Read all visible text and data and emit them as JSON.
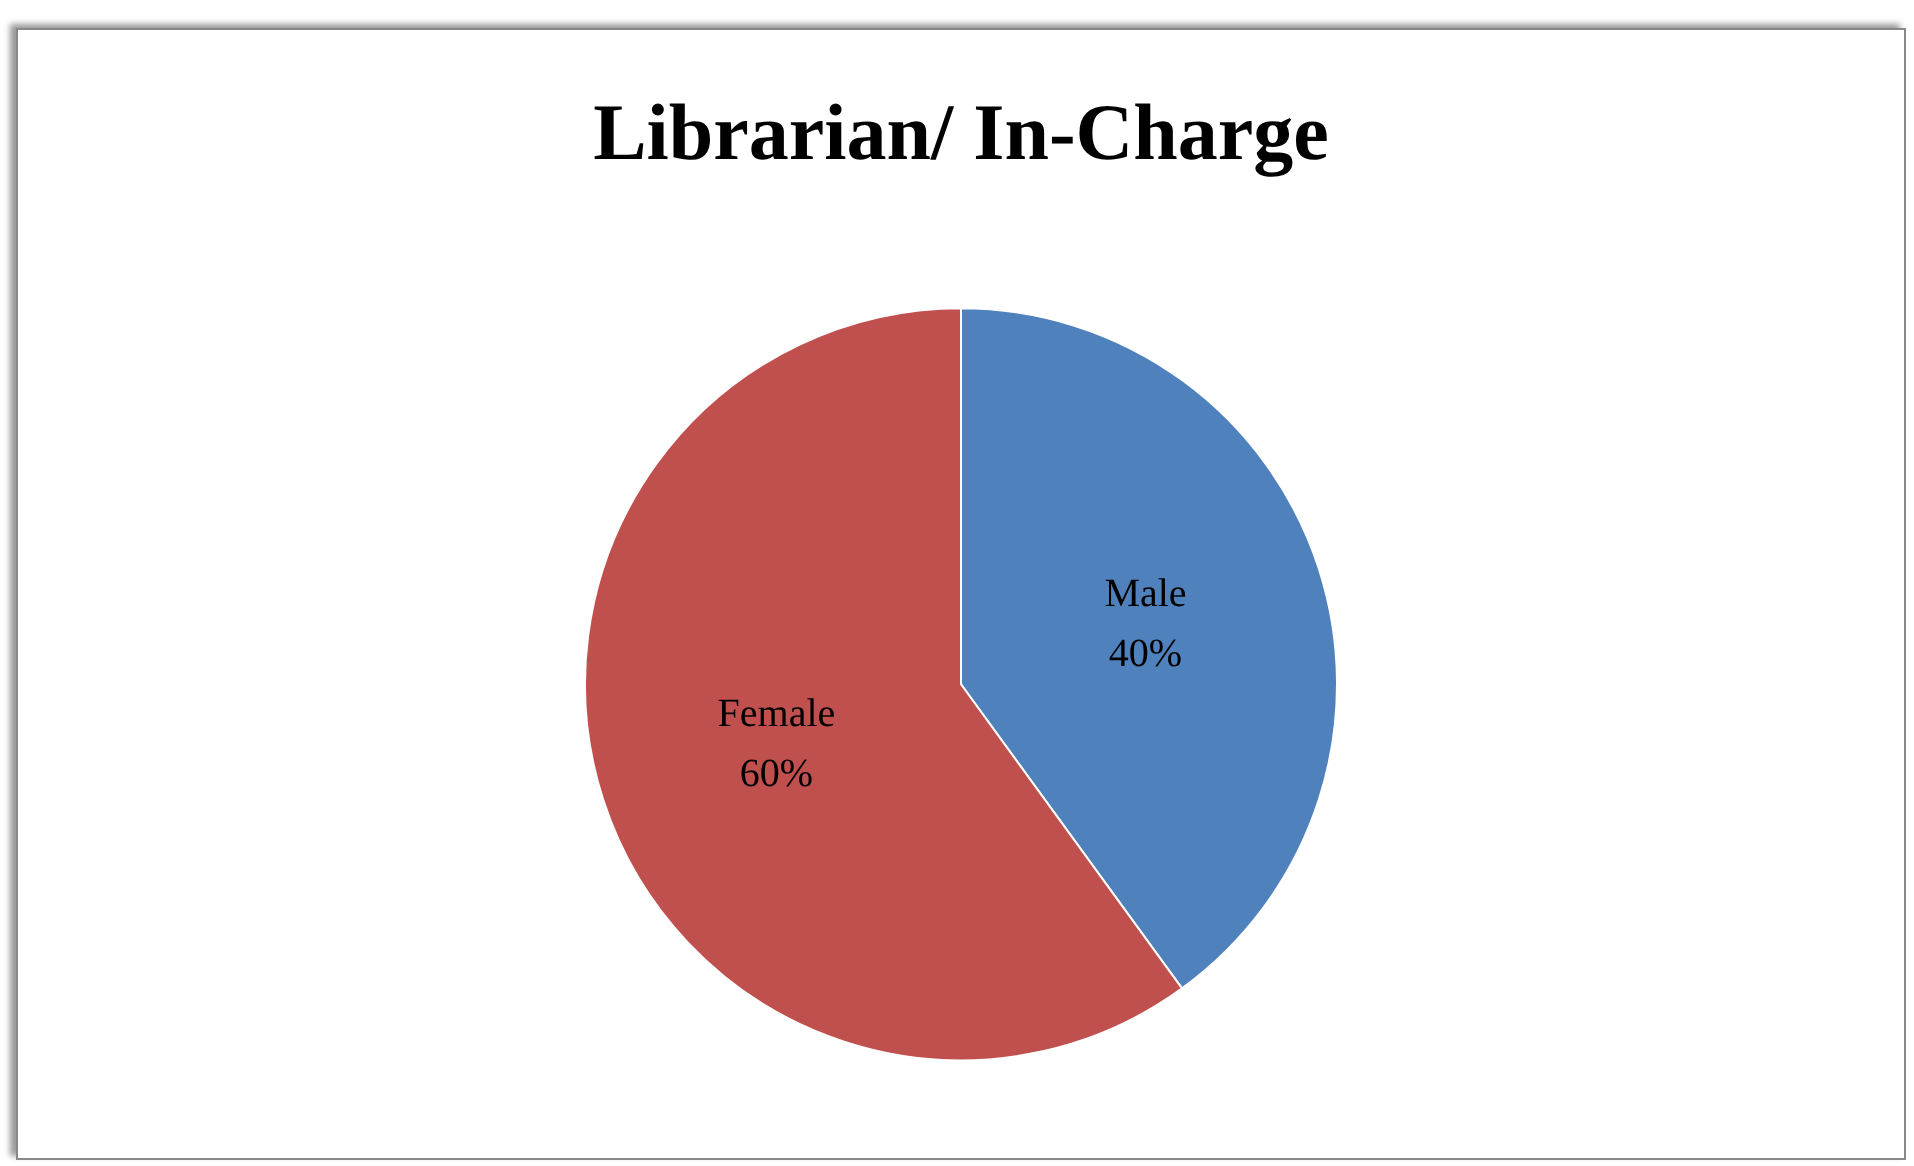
{
  "chart_data": {
    "type": "pie",
    "title": "Librarian/ In-Charge",
    "categories": [
      "Male",
      "Female"
    ],
    "values": [
      40,
      60
    ],
    "colors": [
      "#4f81bd",
      "#c0504d"
    ],
    "value_labels": [
      "40%",
      "60%"
    ],
    "legend": false
  }
}
